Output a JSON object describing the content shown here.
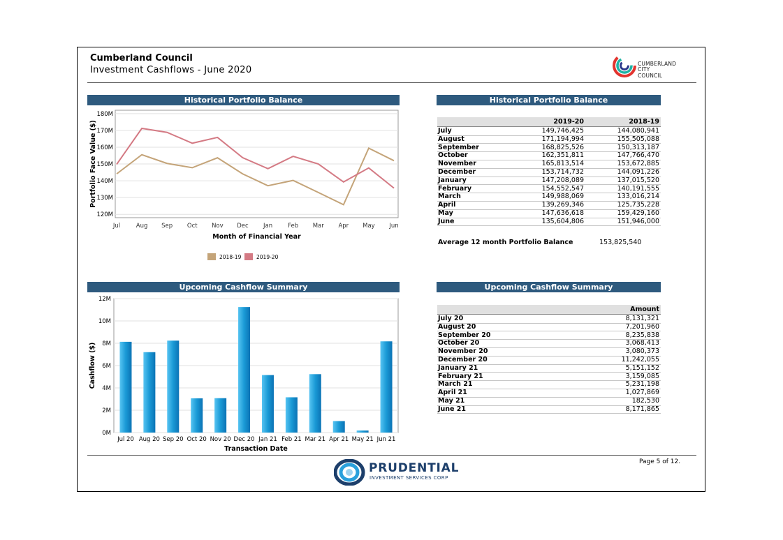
{
  "header": {
    "title": "Cumberland Council",
    "subtitle": "Investment Cashflows - June 2020",
    "logo_line1": "CUMBERLAND",
    "logo_line2": "CITY COUNCIL"
  },
  "balance_chart": {
    "title": "Historical Portfolio Balance",
    "chart_data": {
      "type": "line",
      "title": "Historical Portfolio Balance",
      "xlabel": "Month of Financial Year",
      "ylabel": "Portfolio Face Value ($)",
      "categories": [
        "Jul",
        "Aug",
        "Sep",
        "Oct",
        "Nov",
        "Dec",
        "Jan",
        "Feb",
        "Mar",
        "Apr",
        "May",
        "Jun"
      ],
      "ylim": [
        118000000,
        182000000
      ],
      "yticks": [
        120000000,
        130000000,
        140000000,
        150000000,
        160000000,
        170000000,
        180000000
      ],
      "ytick_labels": [
        "120M",
        "130M",
        "140M",
        "150M",
        "160M",
        "170M",
        "180M"
      ],
      "legend": "bottom",
      "series": [
        {
          "name": "2018-19",
          "color": "#c4a479",
          "values": [
            144080941,
            155505088,
            150313187,
            147766470,
            153672885,
            144091226,
            137015520,
            140191555,
            133016214,
            125735228,
            159429160,
            151946000
          ]
        },
        {
          "name": "2019-20",
          "color": "#d47a84",
          "values": [
            149746425,
            171194994,
            168825526,
            162351811,
            165813514,
            153714732,
            147208089,
            154552547,
            149988069,
            139269346,
            147636618,
            135604806
          ]
        }
      ]
    }
  },
  "balance_table": {
    "title": "Historical Portfolio Balance",
    "col1": "2019-20",
    "col2": "2018-19",
    "rows": [
      {
        "month": "July",
        "a": "149,746,425",
        "b": "144,080,941"
      },
      {
        "month": "August",
        "a": "171,194,994",
        "b": "155,505,088"
      },
      {
        "month": "September",
        "a": "168,825,526",
        "b": "150,313,187"
      },
      {
        "month": "October",
        "a": "162,351,811",
        "b": "147,766,470"
      },
      {
        "month": "November",
        "a": "165,813,514",
        "b": "153,672,885"
      },
      {
        "month": "December",
        "a": "153,714,732",
        "b": "144,091,226"
      },
      {
        "month": "January",
        "a": "147,208,089",
        "b": "137,015,520"
      },
      {
        "month": "February",
        "a": "154,552,547",
        "b": "140,191,555"
      },
      {
        "month": "March",
        "a": "149,988,069",
        "b": "133,016,214"
      },
      {
        "month": "April",
        "a": "139,269,346",
        "b": "125,735,228"
      },
      {
        "month": "May",
        "a": "147,636,618",
        "b": "159,429,160"
      },
      {
        "month": "June",
        "a": "135,604,806",
        "b": "151,946,000"
      }
    ],
    "avg_label": "Average 12 month Portfolio Balance",
    "avg_value": "153,825,540"
  },
  "cashflow_chart": {
    "title": "Upcoming Cashflow Summary",
    "chart_data": {
      "type": "bar",
      "title": "Upcoming Cashflow Summary",
      "xlabel": "Transaction Date",
      "ylabel": "Cashflow ($)",
      "categories": [
        "Jul 20",
        "Aug 20",
        "Sep 20",
        "Oct 20",
        "Nov 20",
        "Dec 20",
        "Jan 21",
        "Feb 21",
        "Mar 21",
        "Apr 21",
        "May 21",
        "Jun 21"
      ],
      "values": [
        8131321,
        7201960,
        8235838,
        3068413,
        3080373,
        11242055,
        5151152,
        3159085,
        5231198,
        1027869,
        182530,
        8171865
      ],
      "ylim": [
        0,
        12000000
      ],
      "yticks": [
        0,
        2000000,
        4000000,
        6000000,
        8000000,
        10000000,
        12000000
      ],
      "ytick_labels": [
        "0M",
        "2M",
        "4M",
        "6M",
        "8M",
        "10M",
        "12M"
      ],
      "color": "#1a9ad6"
    }
  },
  "cashflow_table": {
    "title": "Upcoming Cashflow Summary",
    "col1": "Amount",
    "rows": [
      {
        "month": "July 20",
        "a": "8,131,321"
      },
      {
        "month": "August 20",
        "a": "7,201,960"
      },
      {
        "month": "September 20",
        "a": "8,235,838"
      },
      {
        "month": "October 20",
        "a": "3,068,413"
      },
      {
        "month": "November 20",
        "a": "3,080,373"
      },
      {
        "month": "December 20",
        "a": "11,242,055"
      },
      {
        "month": "January 21",
        "a": "5,151,152"
      },
      {
        "month": "February 21",
        "a": "3,159,085"
      },
      {
        "month": "March 21",
        "a": "5,231,198"
      },
      {
        "month": "April 21",
        "a": "1,027,869"
      },
      {
        "month": "May 21",
        "a": "182,530"
      },
      {
        "month": "June 21",
        "a": "8,171,865"
      }
    ]
  },
  "footer": {
    "page": "Page 5 of 12.",
    "brand": "PRUDENTIAL",
    "brand_sub": "INVESTMENT SERVICES CORP"
  }
}
